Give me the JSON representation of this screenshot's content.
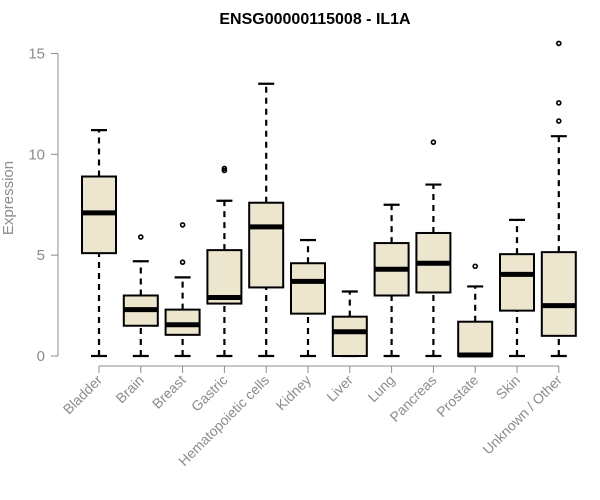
{
  "chart_data": {
    "type": "boxplot",
    "title": "ENSG00000115008 - IL1A",
    "ylabel": "Expression",
    "xlabel": "",
    "ylim": [
      0,
      15.5
    ],
    "yticks": [
      0,
      5,
      10,
      15
    ],
    "box_color": "#ede6cf",
    "median_color": "#000000",
    "categories": [
      "Bladder",
      "Brain",
      "Breast",
      "Gastric",
      "Hematopoietic cells",
      "Kidney",
      "Liver",
      "Lung",
      "Pancreas",
      "Prostate",
      "Skin",
      "Unknown / Other"
    ],
    "boxes": [
      {
        "label": "Bladder",
        "whisker_low": 0,
        "q1": 5.1,
        "median": 7.1,
        "q3": 8.9,
        "whisker_high": 11.2,
        "outliers": []
      },
      {
        "label": "Brain",
        "whisker_low": 0,
        "q1": 1.5,
        "median": 2.3,
        "q3": 3.0,
        "whisker_high": 4.7,
        "outliers": [
          5.9
        ]
      },
      {
        "label": "Breast",
        "whisker_low": 0,
        "q1": 1.05,
        "median": 1.55,
        "q3": 2.3,
        "whisker_high": 3.9,
        "outliers": [
          4.65,
          6.5
        ]
      },
      {
        "label": "Gastric",
        "whisker_low": 0,
        "q1": 2.6,
        "median": 2.9,
        "q3": 5.25,
        "whisker_high": 7.7,
        "outliers": [
          9.2,
          9.3
        ]
      },
      {
        "label": "Hematopoietic cells",
        "whisker_low": 0,
        "q1": 3.4,
        "median": 6.4,
        "q3": 7.6,
        "whisker_high": 13.5,
        "outliers": []
      },
      {
        "label": "Kidney",
        "whisker_low": 0,
        "q1": 2.1,
        "median": 3.7,
        "q3": 4.6,
        "whisker_high": 5.75,
        "outliers": []
      },
      {
        "label": "Liver",
        "whisker_low": 0,
        "q1": 0,
        "median": 1.2,
        "q3": 1.95,
        "whisker_high": 3.2,
        "outliers": []
      },
      {
        "label": "Lung",
        "whisker_low": 0,
        "q1": 3.0,
        "median": 4.3,
        "q3": 5.6,
        "whisker_high": 7.5,
        "outliers": []
      },
      {
        "label": "Pancreas",
        "whisker_low": 0,
        "q1": 3.15,
        "median": 4.6,
        "q3": 6.1,
        "whisker_high": 8.5,
        "outliers": [
          10.6
        ]
      },
      {
        "label": "Prostate",
        "whisker_low": 0,
        "q1": 0,
        "median": 0.05,
        "q3": 1.7,
        "whisker_high": 3.45,
        "outliers": [
          4.45
        ]
      },
      {
        "label": "Skin",
        "whisker_low": 0,
        "q1": 2.25,
        "median": 4.05,
        "q3": 5.05,
        "whisker_high": 6.75,
        "outliers": []
      },
      {
        "label": "Unknown / Other",
        "whisker_low": 0,
        "q1": 1.0,
        "median": 2.5,
        "q3": 5.15,
        "whisker_high": 10.9,
        "outliers": [
          11.65,
          12.55,
          15.5
        ]
      }
    ]
  }
}
